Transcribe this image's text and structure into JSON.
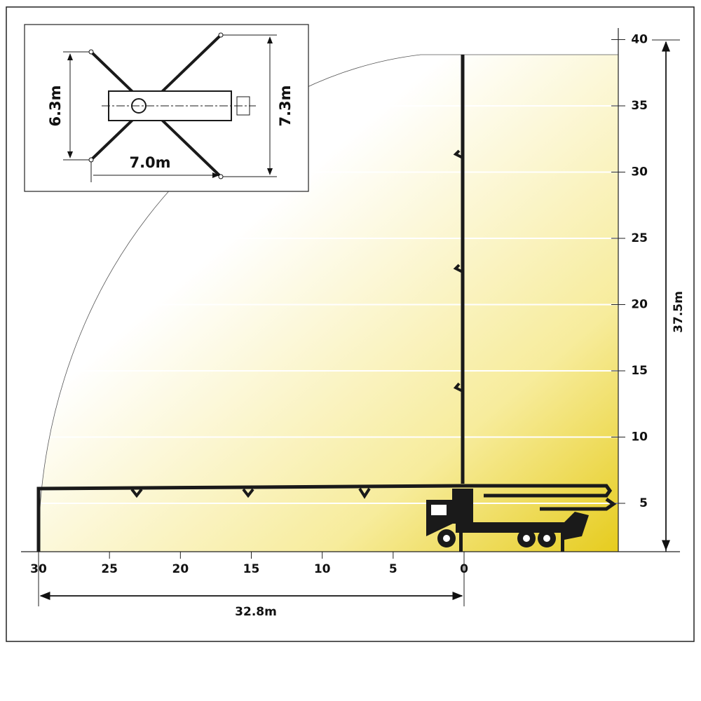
{
  "reach_diagram": {
    "x_ticks": [
      30,
      25,
      20,
      15,
      10,
      5,
      0
    ],
    "y_ticks": [
      5,
      10,
      15,
      20,
      25,
      30,
      35,
      40
    ],
    "horizontal_reach": "32.8m",
    "vertical_reach": "37.5m",
    "outrigger_inset": {
      "rear_width": "6.3m",
      "front_width": "7.3m",
      "length": "7.0m"
    }
  }
}
